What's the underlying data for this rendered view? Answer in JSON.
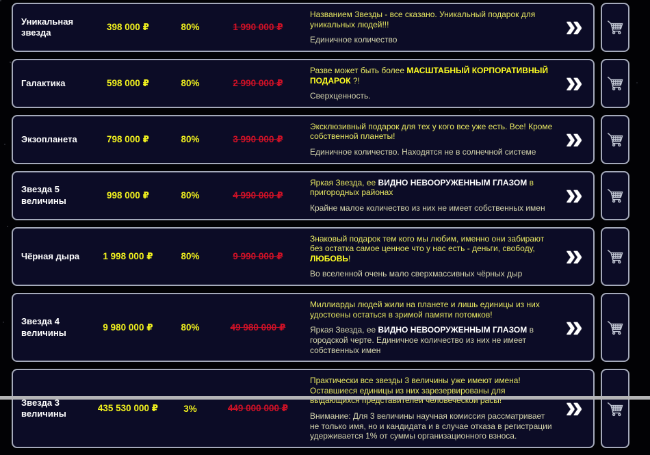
{
  "colors": {
    "page_background": "#020205",
    "box_background": "#0c0c26",
    "box_border": "#a5aabb",
    "product_name": "#ffffff",
    "price_yellow": "#f2f21e",
    "old_price_red": "#d01126",
    "description_yellow": "#e8e862",
    "description_pale": "#d6d6ae",
    "highlight_yellow": "#ffff22",
    "highlight_white": "#ffffff"
  },
  "icons": {
    "arrow_glyph": "»",
    "arrow_name": "double-chevron-right-icon",
    "cart_name": "shopping-cart-icon"
  },
  "products": [
    {
      "name": "Уникальная звезда",
      "price": "398 000 ₽",
      "discount": "80%",
      "old_price": "1 990 000 ₽",
      "description": [
        [
          {
            "text": "Названием Звезды - все сказано. Уникальный подарок для уникальных людей!!!"
          }
        ],
        [
          {
            "text": "Единичное количество"
          }
        ]
      ]
    },
    {
      "name": "Галактика",
      "price": "598 000 ₽",
      "discount": "80%",
      "old_price": "2 990 000 ₽",
      "description": [
        [
          {
            "text": "Разве может быть более "
          },
          {
            "text": "МАСШТАБНЫЙ КОРПОРАТИВНЫЙ ПОДАРОК",
            "style": "bold_yellow"
          },
          {
            "text": " ?!"
          }
        ],
        [
          {
            "text": "Сверхценность."
          }
        ]
      ]
    },
    {
      "name": "Экзопланета",
      "price": "798 000 ₽",
      "discount": "80%",
      "old_price": "3 990 000 ₽",
      "description": [
        [
          {
            "text": "Эксклюзивный подарок для тех у кого все уже есть. Все! Кроме собственной планеты!"
          }
        ],
        [
          {
            "text": "Единичное количество. Находятся не в солнечной системе"
          }
        ]
      ]
    },
    {
      "name": "Звезда 5 величины",
      "price": "998 000 ₽",
      "discount": "80%",
      "old_price": "4 990 000 ₽",
      "description": [
        [
          {
            "text": "Яркая Звезда, ее "
          },
          {
            "text": "ВИДНО НЕВООРУЖЕННЫМ ГЛАЗОМ",
            "style": "bold_white"
          },
          {
            "text": " в пригородных районах"
          }
        ],
        [
          {
            "text": "Крайне малое количество из них не имеет собственных имен"
          }
        ]
      ]
    },
    {
      "name": "Чёрная дыра",
      "price": "1 998 000 ₽",
      "discount": "80%",
      "old_price": "9 990 000 ₽",
      "description": [
        [
          {
            "text": "Знаковый подарок тем кого мы любим, именно они забирают без остатка самое ценное что у нас есть - деньги, свободу, "
          },
          {
            "text": "ЛЮБОВЬ",
            "style": "bold_yellow"
          },
          {
            "text": "!"
          }
        ],
        [
          {
            "text": "Во вселенной очень мало сверхмассивных чёрных дыр"
          }
        ]
      ]
    },
    {
      "name": "Звезда 4 величины",
      "price": "9 980 000 ₽",
      "discount": "80%",
      "old_price": "49 980 000 ₽",
      "description": [
        [
          {
            "text": "Миллиарды людей жили на планете и лишь единицы из них удостоены остаться в зримой памяти потомков!"
          }
        ],
        [
          {
            "text": "Яркая Звезда, ее "
          },
          {
            "text": "ВИДНО НЕВООРУЖЕННЫМ ГЛАЗОМ",
            "style": "bold_white"
          },
          {
            "text": " в городской черте. Единичное количество из них не имеет собственных имен"
          }
        ]
      ]
    },
    {
      "name": "Звезда 3 величины",
      "price": "435 530 000 ₽",
      "discount": "3%",
      "old_price": "449 000 000 ₽",
      "description": [
        [
          {
            "text": "Практически все звезды 3 величины уже имеют имена!\nОставшиеся единицы из них зарезервированы для выдающихся представителей человеческой расы!"
          }
        ],
        [
          {
            "text": "Внимание: Для 3 величины научная комиссия рассматривает не только имя, но и кандидата и в случае отказа в регистрации удерживается 1% от суммы организационного взноса."
          }
        ]
      ]
    }
  ]
}
